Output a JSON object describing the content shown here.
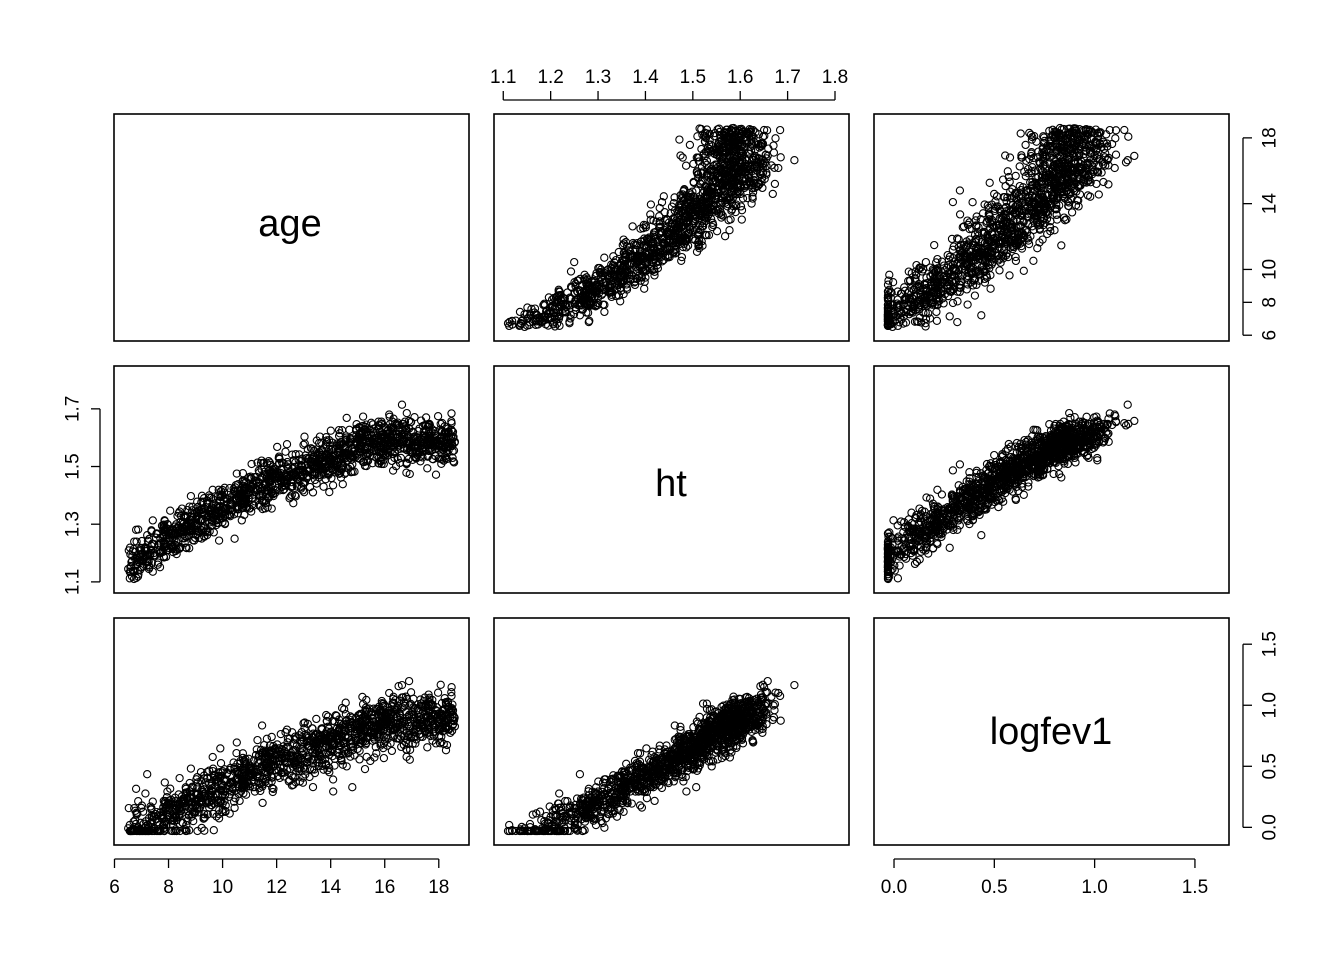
{
  "chart_data": {
    "type": "scatter",
    "subtype": "pairs-matrix",
    "variables": [
      "age",
      "ht",
      "logfev1"
    ],
    "ranges": {
      "age": [
        6.5,
        18.6
      ],
      "ht": [
        1.11,
        1.8
      ],
      "logfev1": [
        -0.03,
        1.6
      ]
    },
    "ticks": {
      "age": [
        "6",
        "8",
        "10",
        "12",
        "14",
        "16",
        "18"
      ],
      "ht": [
        "1.1",
        "1.2",
        "1.3",
        "1.4",
        "1.5",
        "1.6",
        "1.7",
        "1.8"
      ],
      "ht_left": [
        "1.1",
        "1.3",
        "1.5",
        "1.7"
      ],
      "logfev1": [
        "0.0",
        "0.5",
        "1.0",
        "1.5"
      ],
      "age_right": [
        "6",
        "8",
        "10",
        "14",
        "18"
      ]
    },
    "grid": false,
    "marker": "open circle",
    "point_count": 1400,
    "relationship": {
      "age_vs_ht": "positive, leveling off near 1.6-1.7 after age 14",
      "age_vs_logfev1": "positive, roughly linear, spread increasing",
      "ht_vs_logfev1": "strong positive linear"
    }
  }
}
